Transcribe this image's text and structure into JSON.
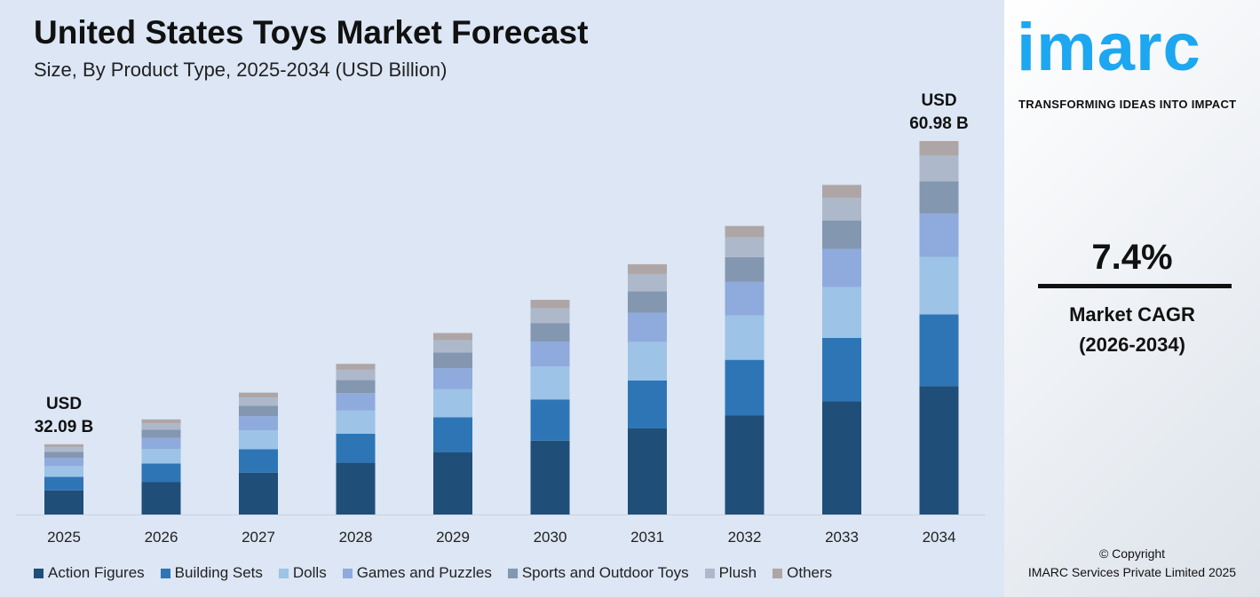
{
  "title": "United States Toys Market Forecast",
  "subtitle": "Size, By Product Type, 2025-2034 (USD Billion)",
  "chart_data": {
    "type": "bar",
    "stacked": true,
    "title": "United States Toys Market Forecast",
    "subtitle": "Size, By Product Type, 2025-2034 (USD Billion)",
    "categories": [
      "2025",
      "2026",
      "2027",
      "2028",
      "2029",
      "2030",
      "2031",
      "2032",
      "2033",
      "2034"
    ],
    "totals": [
      32.09,
      34.46,
      37.01,
      39.75,
      42.69,
      45.85,
      49.24,
      52.89,
      56.8,
      60.98
    ],
    "series": [
      {
        "name": "Action Figures",
        "color": "#1f4e79",
        "share_pct": 34.4
      },
      {
        "name": "Building Sets",
        "color": "#2e75b6",
        "share_pct": 19.2
      },
      {
        "name": "Dolls",
        "color": "#9dc3e6",
        "share_pct": 15.4
      },
      {
        "name": "Games and Puzzles",
        "color": "#8faadc",
        "share_pct": 11.6
      },
      {
        "name": "Sports and Outdoor Toys",
        "color": "#8497b0",
        "share_pct": 8.6
      },
      {
        "name": "Plush",
        "color": "#adb9ca",
        "share_pct": 6.9
      },
      {
        "name": "Others",
        "color": "#aea6a6",
        "share_pct": 3.9
      }
    ],
    "annotations": [
      {
        "year": "2025",
        "line1": "USD",
        "line2": "32.09 B"
      },
      {
        "year": "2034",
        "line1": "USD",
        "line2": "60.98 B"
      }
    ],
    "legend": "bottom",
    "grid": false
  },
  "brand": {
    "logo": "imarc",
    "tagline": "TRANSFORMING IDEAS INTO IMPACT",
    "color": "#1ca7f0"
  },
  "cagr": {
    "value": "7.4%",
    "label": "Market CAGR",
    "period": "(2026-2034)"
  },
  "copyright": {
    "line1": "© Copyright",
    "line2": "IMARC Services Private Limited 2025"
  }
}
